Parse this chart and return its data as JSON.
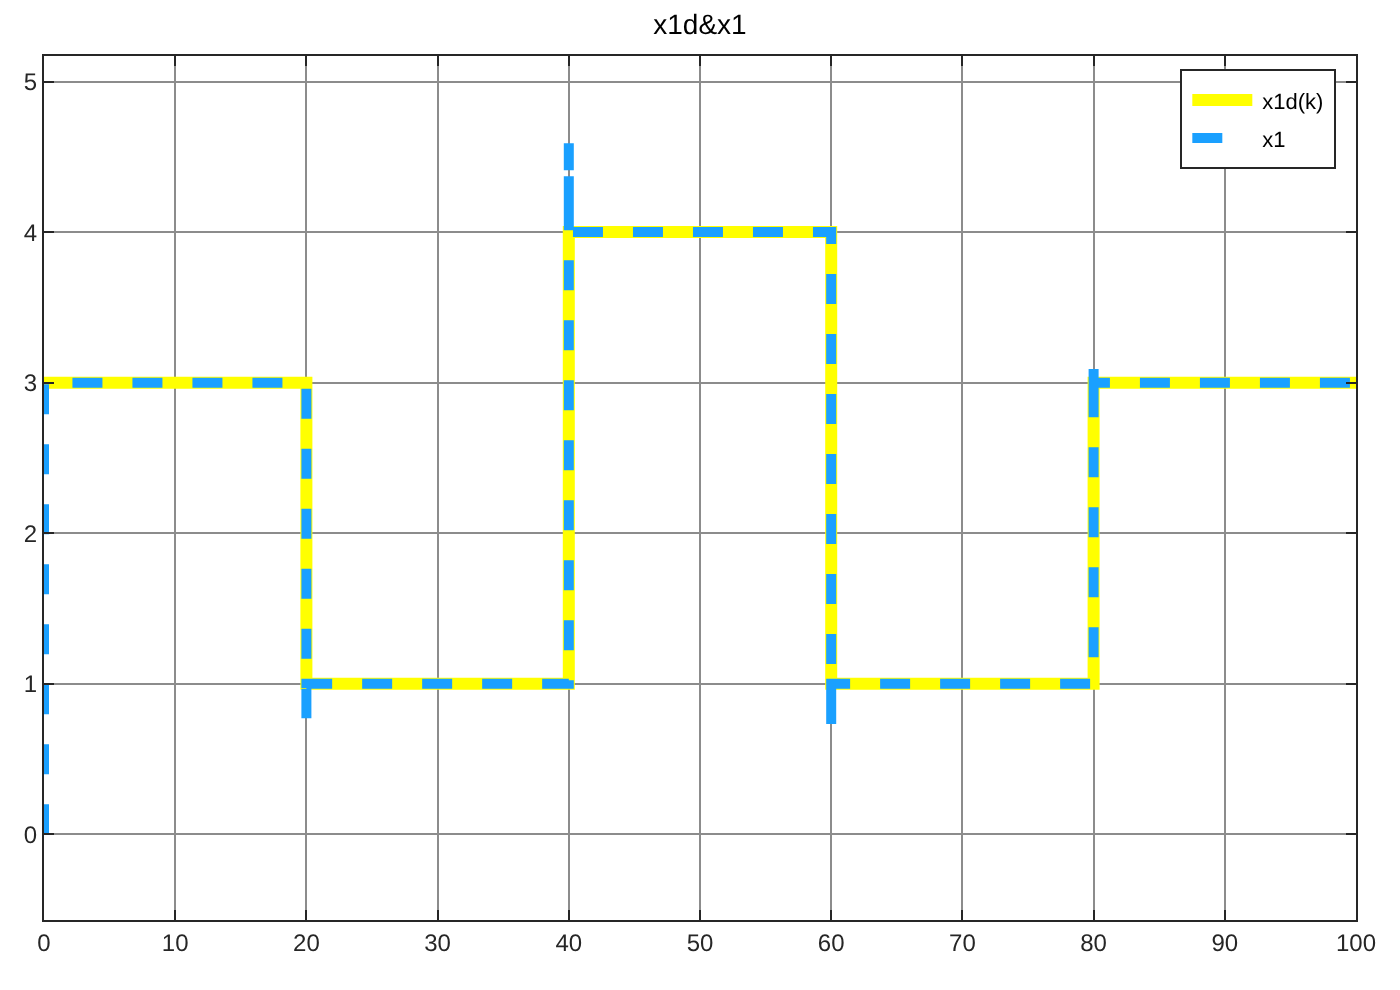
{
  "chart_data": {
    "type": "line",
    "title": "x1d&x1",
    "xlim": [
      0,
      100
    ],
    "xticks": [
      0,
      10,
      20,
      30,
      40,
      50,
      60,
      70,
      80,
      90,
      100
    ],
    "ylim": [
      -0.57,
      5.17
    ],
    "yticks": [
      0,
      1,
      2,
      3,
      4,
      5
    ],
    "grid": true,
    "legend": "top right",
    "series": [
      {
        "name": "x1d(k)",
        "type": "step",
        "color": "#ffff00",
        "line_style": "solid",
        "x": [
          0,
          20,
          40,
          60,
          80,
          100
        ],
        "values": [
          3,
          1,
          4,
          1,
          3,
          3
        ]
      },
      {
        "name": "x1",
        "color": "#1aa0ff",
        "line_style": "dashed",
        "x": [
          0,
          0,
          20,
          20,
          20,
          40,
          40,
          40,
          60,
          60,
          60,
          80,
          80,
          80,
          100
        ],
        "values": [
          0,
          3,
          3,
          0.77,
          1,
          1,
          4.59,
          4,
          4,
          0.73,
          1,
          1,
          3.13,
          3,
          3
        ]
      }
    ]
  }
}
